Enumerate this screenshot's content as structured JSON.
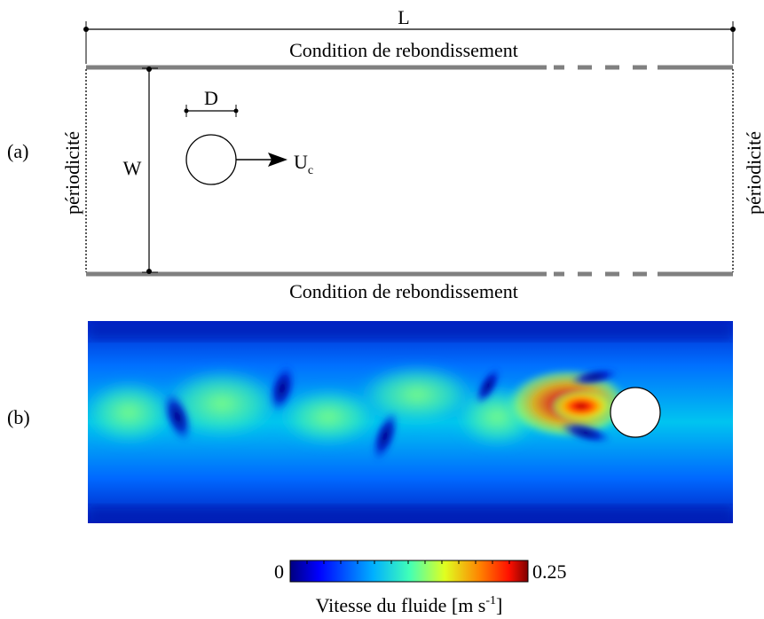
{
  "panel_a": {
    "label": "(a)",
    "length_label": "L",
    "width_label": "W",
    "diameter_label": "D",
    "velocity_label": "U",
    "velocity_subscript": "c",
    "wall_top_label": "Condition de rebondissement",
    "wall_bottom_label": "Condition de rebondissement",
    "periodic_left_label": "périodicité",
    "periodic_right_label": "périodicité",
    "colors": {
      "wall": "#808080",
      "line": "#000000"
    }
  },
  "panel_b": {
    "label": "(b)"
  },
  "colorbar": {
    "min_label": "0",
    "max_label": "0.25",
    "title_main": "Vitesse du fluide [m s",
    "title_sup": "-1",
    "title_end": "]",
    "colormap": "jet"
  }
}
